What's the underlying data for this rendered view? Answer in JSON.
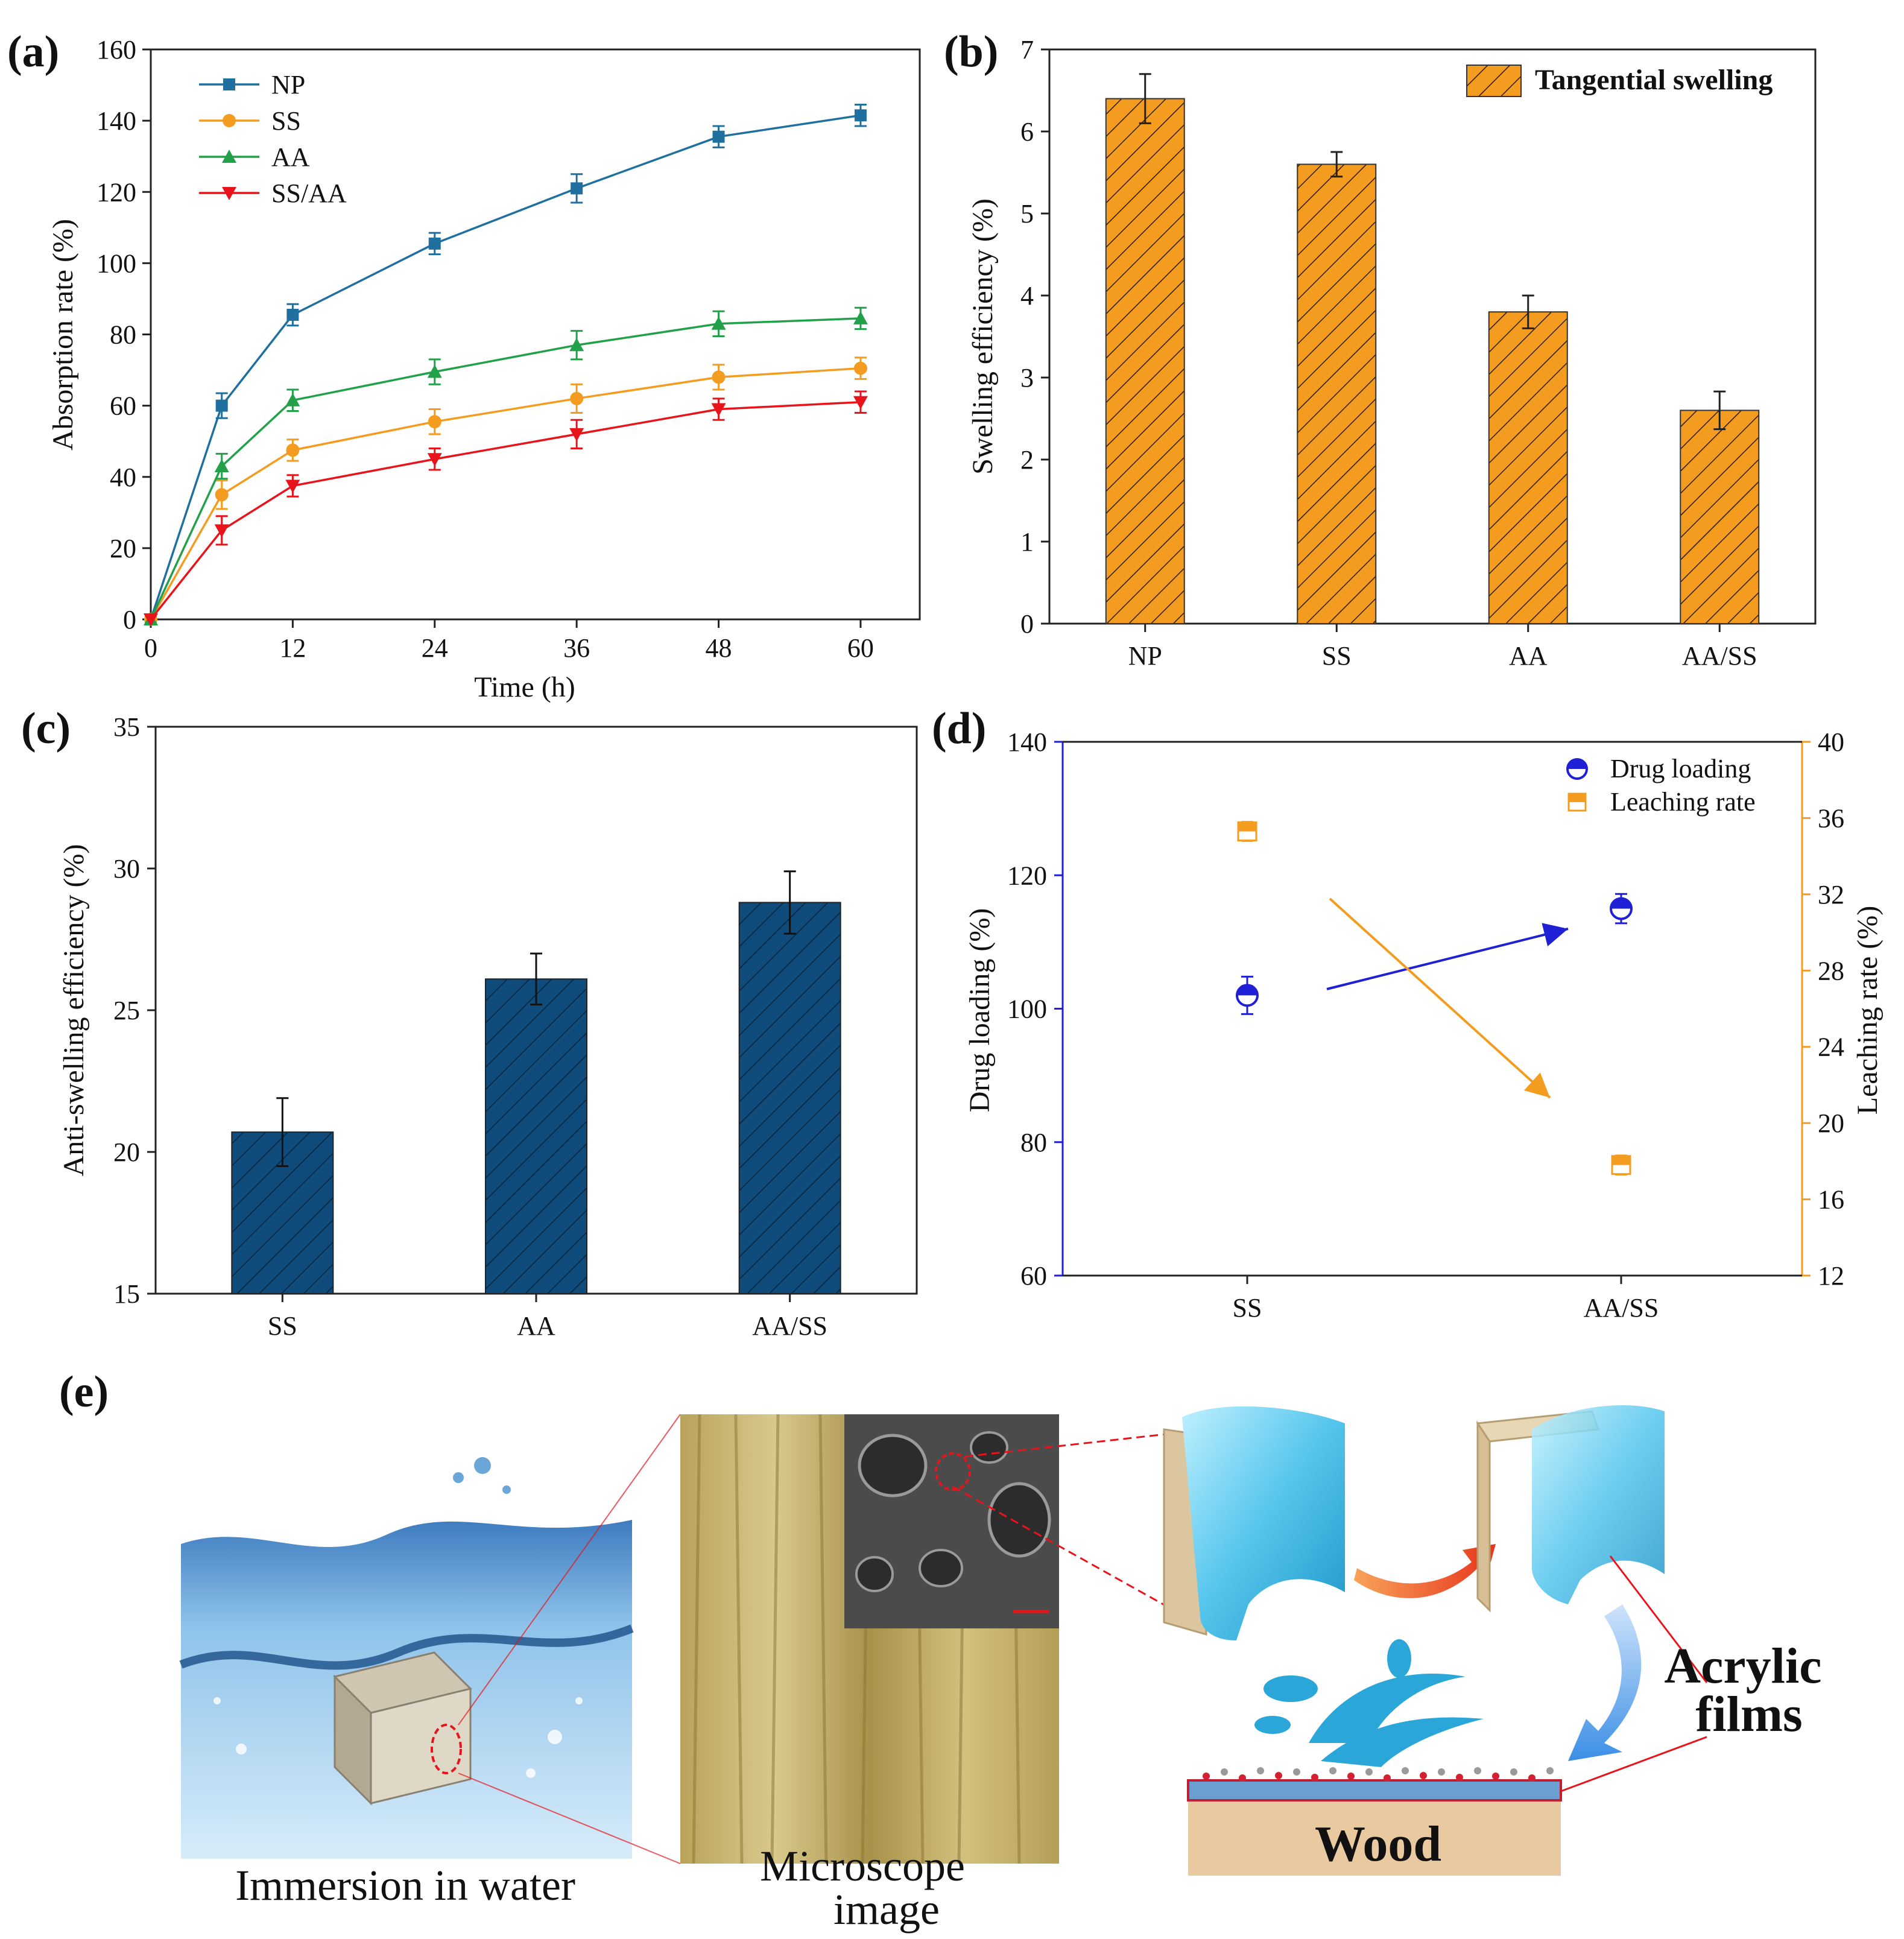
{
  "figure": {
    "panel_labels": [
      "(a)",
      "(b)",
      "(c)",
      "(d)",
      "(e)"
    ]
  },
  "chart_data": [
    {
      "id": "a",
      "type": "line",
      "title": "",
      "xlabel": "Time (h)",
      "ylabel": "Absorption rate (%)",
      "x": [
        0,
        6,
        12,
        24,
        36,
        48,
        60
      ],
      "xticks": [
        0,
        12,
        24,
        36,
        48,
        60
      ],
      "yticks": [
        0,
        20,
        40,
        60,
        80,
        100,
        120,
        140,
        160
      ],
      "xlim": [
        0,
        65
      ],
      "ylim": [
        0,
        160
      ],
      "legend_position": "top-left",
      "series": [
        {
          "name": "NP",
          "marker": "square",
          "color": "#1f6f9f",
          "values": [
            0,
            60,
            85.5,
            105.5,
            121,
            135.5,
            141.5
          ],
          "errors": [
            0,
            3.5,
            3,
            3,
            4,
            3,
            3
          ]
        },
        {
          "name": "SS",
          "marker": "circle",
          "color": "#f39c1f",
          "values": [
            0,
            35,
            47.5,
            55.5,
            62,
            68,
            70.5
          ],
          "errors": [
            0,
            4,
            3,
            3.5,
            4,
            3.5,
            3
          ]
        },
        {
          "name": "AA",
          "marker": "triangle-up",
          "color": "#22a04a",
          "values": [
            0,
            43,
            61.5,
            69.5,
            77,
            83,
            84.5
          ],
          "errors": [
            0,
            3.5,
            3,
            3.5,
            4,
            3.5,
            3
          ]
        },
        {
          "name": "SS/AA",
          "marker": "triangle-down",
          "color": "#e8141c",
          "values": [
            0,
            25,
            37.5,
            45,
            52,
            59,
            61
          ],
          "errors": [
            0,
            4,
            3,
            3,
            4,
            3,
            3
          ]
        }
      ]
    },
    {
      "id": "b",
      "type": "bar",
      "title": "",
      "xlabel": "",
      "ylabel": "Swelling efficiency (%)",
      "categories": [
        "NP",
        "SS",
        "AA",
        "AA/SS"
      ],
      "values": [
        6.4,
        5.6,
        3.8,
        2.6
      ],
      "errors": [
        0.3,
        0.15,
        0.2,
        0.23
      ],
      "yticks": [
        0,
        1,
        2,
        3,
        4,
        5,
        6,
        7
      ],
      "ylim": [
        0,
        7
      ],
      "legend": "Tangential swelling",
      "legend_position": "top-right",
      "color": "#f39c1f"
    },
    {
      "id": "c",
      "type": "bar",
      "title": "",
      "xlabel": "",
      "ylabel": "Anti-swelling efficiency (%)",
      "categories": [
        "SS",
        "AA",
        "AA/SS"
      ],
      "values": [
        20.7,
        26.1,
        28.8
      ],
      "errors": [
        1.2,
        0.9,
        1.1
      ],
      "yticks": [
        15,
        20,
        25,
        30,
        35
      ],
      "ylim": [
        15,
        35
      ],
      "color": "#0f4c7c"
    },
    {
      "id": "d",
      "type": "scatter",
      "title": "",
      "xlabel": "",
      "categories": [
        "SS",
        "AA/SS"
      ],
      "legend_position": "top-right",
      "left_axis": {
        "label": "Drug loading (%)",
        "ylim": [
          60,
          140
        ],
        "yticks": [
          60,
          80,
          100,
          120,
          140
        ],
        "color": "#1f1fd6"
      },
      "right_axis": {
        "label": "Leaching rate (%)",
        "ylim": [
          12,
          40
        ],
        "yticks": [
          12,
          16,
          20,
          24,
          28,
          32,
          36,
          40
        ],
        "color": "#f39c1f"
      },
      "series": [
        {
          "name": "Drug loading",
          "axis": "left",
          "color": "#1f1fd6",
          "values": [
            102,
            115
          ],
          "errors": [
            2.8,
            2.2
          ]
        },
        {
          "name": "Leaching rate",
          "axis": "right",
          "color": "#f39c1f",
          "values": [
            35.3,
            17.8
          ],
          "errors": [
            0.5,
            0.5
          ]
        }
      ]
    }
  ],
  "illustration": {
    "caption_water": "Immersion in water",
    "caption_microscope_1": "Microscope",
    "caption_microscope_2": "image",
    "caption_films_1": "Acrylic",
    "caption_films_2": "films",
    "caption_wood": "Wood"
  }
}
